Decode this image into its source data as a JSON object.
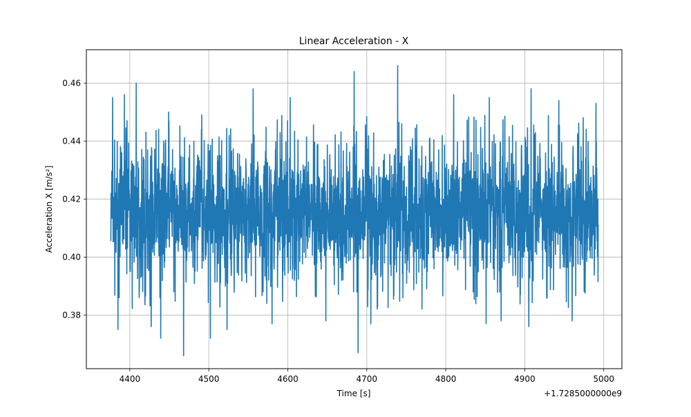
{
  "chart_data": {
    "type": "line",
    "title": "Linear Acceleration - X",
    "xlabel": "Time [s]",
    "ylabel": "Acceleration X [m/s²]",
    "x_offset_label": "+1.7285000000e9",
    "xlim": [
      4345,
      5023
    ],
    "ylim": [
      0.3615,
      0.4715
    ],
    "x_ticks": [
      4400,
      4500,
      4600,
      4700,
      4800,
      4900,
      5000
    ],
    "x_tick_labels": [
      "4400",
      "4500",
      "4600",
      "4700",
      "4800",
      "4900",
      "5000"
    ],
    "y_ticks": [
      0.38,
      0.4,
      0.42,
      0.44,
      0.46
    ],
    "y_tick_labels": [
      "0.38",
      "0.40",
      "0.42",
      "0.44",
      "0.46"
    ],
    "grid": true,
    "line_color": "#1f77b4",
    "series": [
      {
        "x_range": [
          4376,
          4993
        ],
        "band": {
          "low": 0.394,
          "high": 0.437
        },
        "peaks": [
          {
            "x": 4378,
            "y": 0.455
          },
          {
            "x": 4393,
            "y": 0.456
          },
          {
            "x": 4408,
            "y": 0.46
          },
          {
            "x": 4449,
            "y": 0.45
          },
          {
            "x": 4491,
            "y": 0.449
          },
          {
            "x": 4556,
            "y": 0.458
          },
          {
            "x": 4603,
            "y": 0.455
          },
          {
            "x": 4684,
            "y": 0.464
          },
          {
            "x": 4739,
            "y": 0.466
          },
          {
            "x": 4810,
            "y": 0.456
          },
          {
            "x": 4855,
            "y": 0.455
          },
          {
            "x": 4908,
            "y": 0.458
          },
          {
            "x": 4943,
            "y": 0.454
          },
          {
            "x": 4990,
            "y": 0.453
          }
        ],
        "troughs": [
          {
            "x": 4385,
            "y": 0.375
          },
          {
            "x": 4427,
            "y": 0.376
          },
          {
            "x": 4439,
            "y": 0.372
          },
          {
            "x": 4468,
            "y": 0.366
          },
          {
            "x": 4502,
            "y": 0.372
          },
          {
            "x": 4523,
            "y": 0.375
          },
          {
            "x": 4580,
            "y": 0.377
          },
          {
            "x": 4648,
            "y": 0.378
          },
          {
            "x": 4689,
            "y": 0.367
          },
          {
            "x": 4705,
            "y": 0.377
          },
          {
            "x": 4851,
            "y": 0.377
          },
          {
            "x": 4870,
            "y": 0.378
          },
          {
            "x": 4905,
            "y": 0.376
          },
          {
            "x": 4960,
            "y": 0.378
          }
        ]
      }
    ]
  }
}
